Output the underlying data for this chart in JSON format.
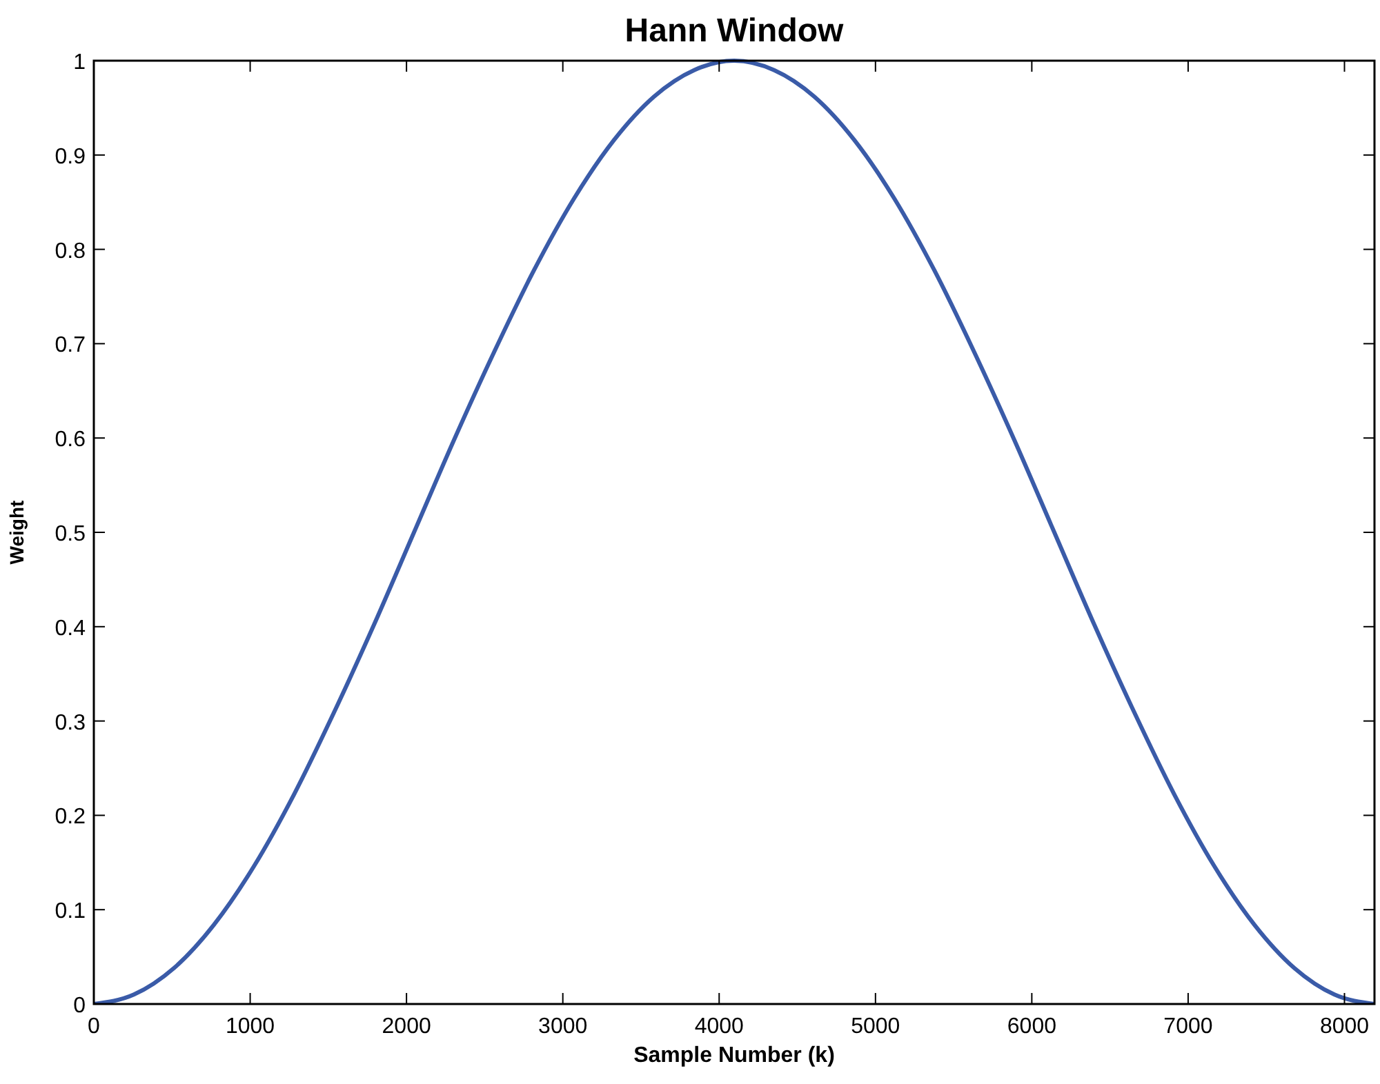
{
  "chart_data": {
    "type": "line",
    "title": "Hann Window",
    "xlabel": "Sample Number (k)",
    "ylabel": "Weight",
    "x": [
      0,
      256,
      512,
      768,
      1024,
      1280,
      1536,
      1792,
      2048,
      2304,
      2560,
      2816,
      3072,
      3328,
      3584,
      3840,
      4096,
      4352,
      4608,
      4864,
      5120,
      5376,
      5632,
      5888,
      6144,
      6400,
      6656,
      6912,
      7168,
      7424,
      7680,
      7936,
      8192
    ],
    "series": [
      {
        "color": "#3a5ba8",
        "values": [
          0,
          0.01,
          0.038,
          0.084,
          0.146,
          0.222,
          0.309,
          0.402,
          0.5,
          0.598,
          0.691,
          0.778,
          0.854,
          0.916,
          0.962,
          0.99,
          1,
          0.99,
          0.962,
          0.916,
          0.854,
          0.778,
          0.691,
          0.598,
          0.5,
          0.402,
          0.309,
          0.222,
          0.146,
          0.084,
          0.038,
          0.01,
          0
        ]
      }
    ],
    "xlim": [
      0,
      8192
    ],
    "xticks": [
      0,
      1000,
      2000,
      3000,
      4000,
      5000,
      6000,
      7000,
      8000
    ],
    "ylim": [
      0,
      1
    ],
    "yticks": [
      0,
      0.1,
      0.2,
      0.3,
      0.4,
      0.5,
      0.6,
      0.7,
      0.8,
      0.9,
      1
    ],
    "grid": false,
    "marker": "none",
    "line_style": "solid"
  }
}
